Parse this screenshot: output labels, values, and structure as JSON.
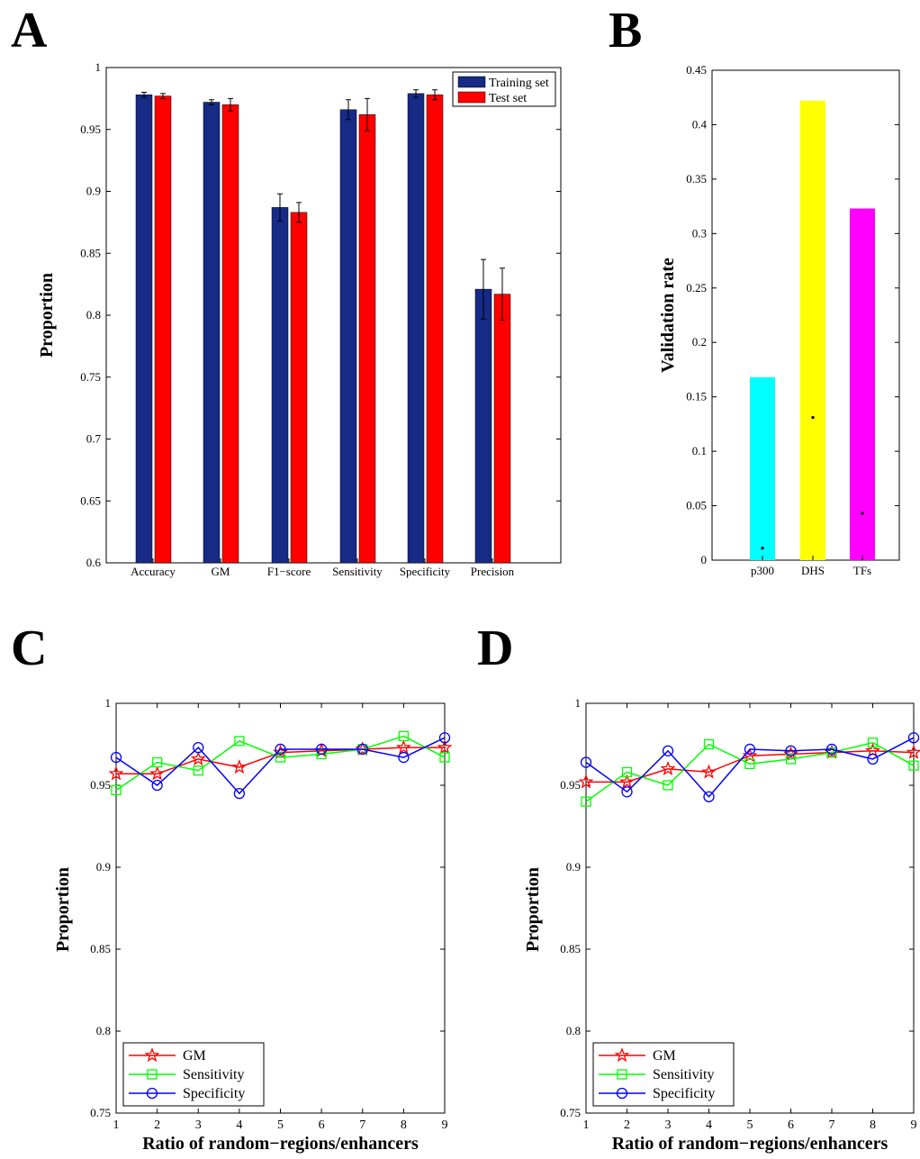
{
  "panel_letters": [
    "A",
    "B",
    "C",
    "D"
  ],
  "chart_data": [
    {
      "panel": "A",
      "type": "bar",
      "ylabel": "Proportion",
      "xlabel": "",
      "ylim": [
        0.6,
        1.0
      ],
      "yticks": [
        "0.6",
        "0.65",
        "0.7",
        "0.75",
        "0.8",
        "0.85",
        "0.9",
        "0.95",
        "1"
      ],
      "categories": [
        "Accuracy",
        "GM",
        "F1−score",
        "Sensitivity",
        "Specificity",
        "Precision"
      ],
      "legend_position": "top-right",
      "series": [
        {
          "name": "Training set",
          "color": "#162a86",
          "values": [
            0.978,
            0.972,
            0.887,
            0.966,
            0.979,
            0.821
          ],
          "errors": [
            0.002,
            0.002,
            0.011,
            0.008,
            0.003,
            0.024
          ]
        },
        {
          "name": "Test set",
          "color": "#ff0000",
          "values": [
            0.977,
            0.97,
            0.883,
            0.962,
            0.978,
            0.817
          ],
          "errors": [
            0.002,
            0.005,
            0.008,
            0.013,
            0.004,
            0.021
          ]
        }
      ]
    },
    {
      "panel": "B",
      "type": "bar",
      "ylabel": "Validation rate",
      "xlabel": "",
      "ylim": [
        0,
        0.45
      ],
      "yticks": [
        "0",
        "0.05",
        "0.1",
        "0.15",
        "0.2",
        "0.25",
        "0.3",
        "0.35",
        "0.4",
        "0.45"
      ],
      "categories": [
        "p300",
        "DHS",
        "TFs"
      ],
      "values": [
        0.168,
        0.422,
        0.323
      ],
      "colors": [
        "#00ffff",
        "#ffff00",
        "#ff00ff"
      ],
      "marker_values": [
        0.011,
        0.131,
        0.043
      ]
    },
    {
      "panel": "C",
      "type": "line",
      "ylabel": "Proportion",
      "xlabel": "Ratio of random−regions/enhancers",
      "ylim": [
        0.75,
        1.0
      ],
      "yticks": [
        "0.75",
        "0.8",
        "0.85",
        "0.9",
        "0.95",
        "1"
      ],
      "x": [
        1,
        2,
        3,
        4,
        5,
        6,
        7,
        8,
        9
      ],
      "legend_position": "bottom-left",
      "series": [
        {
          "name": "GM",
          "color": "#ff0000",
          "marker": "star",
          "values": [
            0.957,
            0.957,
            0.966,
            0.961,
            0.97,
            0.971,
            0.972,
            0.973,
            0.973
          ]
        },
        {
          "name": "Sensitivity",
          "color": "#00ff00",
          "marker": "square",
          "values": [
            0.947,
            0.964,
            0.959,
            0.977,
            0.967,
            0.969,
            0.972,
            0.98,
            0.967
          ]
        },
        {
          "name": "Specificity",
          "color": "#0000ff",
          "marker": "circle",
          "values": [
            0.967,
            0.95,
            0.973,
            0.945,
            0.972,
            0.972,
            0.972,
            0.967,
            0.979
          ]
        }
      ]
    },
    {
      "panel": "D",
      "type": "line",
      "ylabel": "Proportion",
      "xlabel": "Ratio of random−regions/enhancers",
      "ylim": [
        0.75,
        1.0
      ],
      "yticks": [
        "0.75",
        "0.8",
        "0.85",
        "0.9",
        "0.95",
        "1"
      ],
      "x": [
        1,
        2,
        3,
        4,
        5,
        6,
        7,
        8,
        9
      ],
      "legend_position": "bottom-left",
      "series": [
        {
          "name": "GM",
          "color": "#ff0000",
          "marker": "star",
          "values": [
            0.952,
            0.952,
            0.96,
            0.958,
            0.968,
            0.969,
            0.97,
            0.971,
            0.97
          ]
        },
        {
          "name": "Sensitivity",
          "color": "#00ff00",
          "marker": "square",
          "values": [
            0.94,
            0.958,
            0.95,
            0.975,
            0.963,
            0.966,
            0.97,
            0.976,
            0.962
          ]
        },
        {
          "name": "Specificity",
          "color": "#0000ff",
          "marker": "circle",
          "values": [
            0.964,
            0.946,
            0.971,
            0.943,
            0.972,
            0.971,
            0.972,
            0.966,
            0.979
          ]
        }
      ]
    }
  ]
}
